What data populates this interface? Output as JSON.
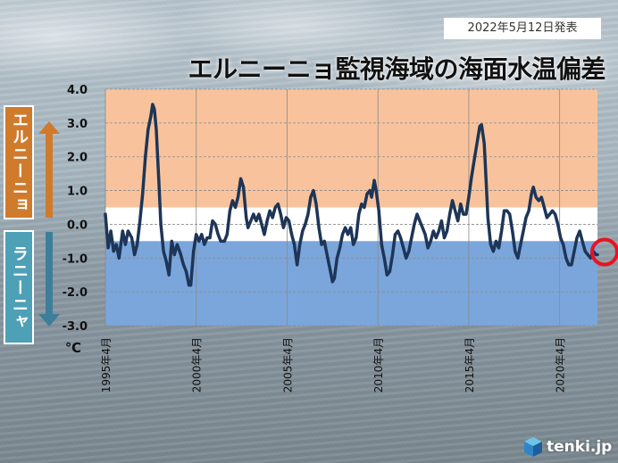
{
  "date_badge": "2022年5月12日発表",
  "title": "エルニーニョ監視海域の海面水温偏差",
  "side_labels": {
    "elnino": "エルニーニョ",
    "lanina": "ラニーニャ"
  },
  "logo": {
    "text": "tenki.jp",
    "icon": "tenki-cube-icon"
  },
  "colors": {
    "elnino_band": "#f8c39c",
    "neutral_band": "#ffffff",
    "lanina_band": "#7ba6dc",
    "line": "#1d3557",
    "highlight_circle": "#e8141e",
    "elnino_arrow": "#d07a2c",
    "lanina_arrow": "#3d7f9a"
  },
  "chart_data": {
    "type": "line",
    "title": "エルニーニョ監視海域の海面水温偏差",
    "ylabel": "℃",
    "xlabel": "",
    "ylim": [
      -3.0,
      4.0
    ],
    "yticks": [
      "4.0",
      "3.0",
      "2.0",
      "1.0",
      "0.0",
      "-1.0",
      "-2.0",
      "-3.0"
    ],
    "xlim": [
      1995.25,
      2022.33
    ],
    "xticks": [
      {
        "value": 1995.25,
        "label": "1995年4月"
      },
      {
        "value": 2000.25,
        "label": "2000年4月"
      },
      {
        "value": 2005.25,
        "label": "2005年4月"
      },
      {
        "value": 2010.25,
        "label": "2010年4月"
      },
      {
        "value": 2015.25,
        "label": "2015年4月"
      },
      {
        "value": 2020.25,
        "label": "2020年4月"
      }
    ],
    "bands": [
      {
        "name": "elnino",
        "from": 0.5,
        "to": 4.0
      },
      {
        "name": "neutral",
        "from": -0.5,
        "to": 0.5
      },
      {
        "name": "lanina",
        "from": -3.0,
        "to": -0.5
      }
    ],
    "grid": true,
    "highlight_last_point": true,
    "series": [
      {
        "points": [
          [
            1995.25,
            0.3
          ],
          [
            1995.4,
            -0.7
          ],
          [
            1995.55,
            -0.2
          ],
          [
            1995.7,
            -0.8
          ],
          [
            1995.85,
            -0.6
          ],
          [
            1996.0,
            -1.0
          ],
          [
            1996.2,
            -0.2
          ],
          [
            1996.35,
            -0.6
          ],
          [
            1996.5,
            -0.2
          ],
          [
            1996.7,
            -0.4
          ],
          [
            1996.85,
            -0.9
          ],
          [
            1997.0,
            -0.6
          ],
          [
            1997.15,
            0.1
          ],
          [
            1997.3,
            0.9
          ],
          [
            1997.45,
            2.0
          ],
          [
            1997.6,
            2.8
          ],
          [
            1997.75,
            3.2
          ],
          [
            1997.85,
            3.55
          ],
          [
            1997.95,
            3.4
          ],
          [
            1998.05,
            2.8
          ],
          [
            1998.2,
            1.2
          ],
          [
            1998.3,
            0.0
          ],
          [
            1998.45,
            -0.8
          ],
          [
            1998.6,
            -1.1
          ],
          [
            1998.75,
            -1.5
          ],
          [
            1998.9,
            -0.5
          ],
          [
            1999.05,
            -0.9
          ],
          [
            1999.2,
            -0.6
          ],
          [
            1999.4,
            -0.9
          ],
          [
            1999.55,
            -1.2
          ],
          [
            1999.7,
            -1.4
          ],
          [
            1999.85,
            -1.8
          ],
          [
            1999.95,
            -1.8
          ],
          [
            2000.1,
            -0.8
          ],
          [
            2000.25,
            -0.3
          ],
          [
            2000.4,
            -0.5
          ],
          [
            2000.55,
            -0.3
          ],
          [
            2000.7,
            -0.6
          ],
          [
            2000.85,
            -0.4
          ],
          [
            2001.0,
            -0.4
          ],
          [
            2001.15,
            0.1
          ],
          [
            2001.3,
            0.0
          ],
          [
            2001.45,
            -0.3
          ],
          [
            2001.6,
            -0.5
          ],
          [
            2001.8,
            -0.5
          ],
          [
            2001.95,
            -0.3
          ],
          [
            2002.1,
            0.4
          ],
          [
            2002.25,
            0.7
          ],
          [
            2002.4,
            0.5
          ],
          [
            2002.55,
            0.8
          ],
          [
            2002.7,
            1.35
          ],
          [
            2002.85,
            1.1
          ],
          [
            2003.0,
            0.2
          ],
          [
            2003.1,
            -0.1
          ],
          [
            2003.25,
            0.1
          ],
          [
            2003.4,
            0.3
          ],
          [
            2003.55,
            0.1
          ],
          [
            2003.7,
            0.3
          ],
          [
            2003.85,
            0.0
          ],
          [
            2004.0,
            -0.3
          ],
          [
            2004.15,
            0.1
          ],
          [
            2004.3,
            0.4
          ],
          [
            2004.45,
            0.2
          ],
          [
            2004.6,
            0.5
          ],
          [
            2004.75,
            0.6
          ],
          [
            2004.9,
            0.3
          ],
          [
            2005.05,
            -0.1
          ],
          [
            2005.2,
            0.2
          ],
          [
            2005.35,
            0.1
          ],
          [
            2005.5,
            -0.3
          ],
          [
            2005.65,
            -0.6
          ],
          [
            2005.8,
            -1.2
          ],
          [
            2005.95,
            -0.6
          ],
          [
            2006.1,
            -0.2
          ],
          [
            2006.25,
            0.0
          ],
          [
            2006.4,
            0.3
          ],
          [
            2006.55,
            0.8
          ],
          [
            2006.7,
            1.0
          ],
          [
            2006.85,
            0.6
          ],
          [
            2007.0,
            -0.1
          ],
          [
            2007.15,
            -0.6
          ],
          [
            2007.3,
            -0.5
          ],
          [
            2007.45,
            -0.9
          ],
          [
            2007.6,
            -1.3
          ],
          [
            2007.75,
            -1.7
          ],
          [
            2007.85,
            -1.6
          ],
          [
            2008.0,
            -1.0
          ],
          [
            2008.15,
            -0.7
          ],
          [
            2008.3,
            -0.3
          ],
          [
            2008.45,
            -0.1
          ],
          [
            2008.6,
            -0.3
          ],
          [
            2008.75,
            -0.1
          ],
          [
            2008.9,
            -0.6
          ],
          [
            2009.05,
            -0.4
          ],
          [
            2009.2,
            0.3
          ],
          [
            2009.35,
            0.6
          ],
          [
            2009.5,
            0.5
          ],
          [
            2009.65,
            0.9
          ],
          [
            2009.8,
            1.0
          ],
          [
            2009.9,
            0.8
          ],
          [
            2010.05,
            1.3
          ],
          [
            2010.15,
            1.0
          ],
          [
            2010.3,
            0.4
          ],
          [
            2010.45,
            -0.6
          ],
          [
            2010.6,
            -1.0
          ],
          [
            2010.75,
            -1.5
          ],
          [
            2010.9,
            -1.4
          ],
          [
            2011.05,
            -0.9
          ],
          [
            2011.2,
            -0.3
          ],
          [
            2011.35,
            -0.2
          ],
          [
            2011.5,
            -0.4
          ],
          [
            2011.65,
            -0.7
          ],
          [
            2011.8,
            -1.0
          ],
          [
            2011.95,
            -0.8
          ],
          [
            2012.1,
            -0.4
          ],
          [
            2012.25,
            0.0
          ],
          [
            2012.4,
            0.3
          ],
          [
            2012.55,
            0.1
          ],
          [
            2012.7,
            -0.1
          ],
          [
            2012.85,
            -0.3
          ],
          [
            2013.0,
            -0.7
          ],
          [
            2013.15,
            -0.5
          ],
          [
            2013.3,
            -0.2
          ],
          [
            2013.45,
            -0.4
          ],
          [
            2013.6,
            -0.2
          ],
          [
            2013.75,
            0.1
          ],
          [
            2013.9,
            -0.4
          ],
          [
            2014.05,
            -0.2
          ],
          [
            2014.2,
            0.3
          ],
          [
            2014.35,
            0.7
          ],
          [
            2014.5,
            0.4
          ],
          [
            2014.65,
            0.1
          ],
          [
            2014.8,
            0.6
          ],
          [
            2014.95,
            0.3
          ],
          [
            2015.1,
            0.3
          ],
          [
            2015.25,
            0.8
          ],
          [
            2015.4,
            1.4
          ],
          [
            2015.55,
            1.9
          ],
          [
            2015.7,
            2.4
          ],
          [
            2015.85,
            2.9
          ],
          [
            2015.95,
            2.95
          ],
          [
            2016.1,
            2.4
          ],
          [
            2016.2,
            1.3
          ],
          [
            2016.3,
            0.2
          ],
          [
            2016.45,
            -0.6
          ],
          [
            2016.6,
            -0.8
          ],
          [
            2016.75,
            -0.5
          ],
          [
            2016.9,
            -0.7
          ],
          [
            2017.05,
            -0.2
          ],
          [
            2017.2,
            0.4
          ],
          [
            2017.35,
            0.4
          ],
          [
            2017.5,
            0.3
          ],
          [
            2017.65,
            -0.2
          ],
          [
            2017.8,
            -0.8
          ],
          [
            2017.95,
            -1.0
          ],
          [
            2018.1,
            -0.6
          ],
          [
            2018.25,
            -0.2
          ],
          [
            2018.4,
            0.2
          ],
          [
            2018.55,
            0.4
          ],
          [
            2018.7,
            0.9
          ],
          [
            2018.8,
            1.1
          ],
          [
            2018.95,
            0.8
          ],
          [
            2019.1,
            0.7
          ],
          [
            2019.25,
            0.8
          ],
          [
            2019.4,
            0.5
          ],
          [
            2019.55,
            0.2
          ],
          [
            2019.7,
            0.3
          ],
          [
            2019.85,
            0.4
          ],
          [
            2020.0,
            0.3
          ],
          [
            2020.15,
            0.0
          ],
          [
            2020.3,
            -0.4
          ],
          [
            2020.45,
            -0.6
          ],
          [
            2020.6,
            -1.0
          ],
          [
            2020.75,
            -1.2
          ],
          [
            2020.9,
            -1.2
          ],
          [
            2021.05,
            -0.8
          ],
          [
            2021.2,
            -0.4
          ],
          [
            2021.35,
            -0.2
          ],
          [
            2021.5,
            -0.5
          ],
          [
            2021.65,
            -0.8
          ],
          [
            2021.8,
            -0.9
          ],
          [
            2021.95,
            -1.0
          ],
          [
            2022.1,
            -0.8
          ],
          [
            2022.25,
            -0.9
          ],
          [
            2022.33,
            -0.9
          ]
        ]
      }
    ]
  }
}
